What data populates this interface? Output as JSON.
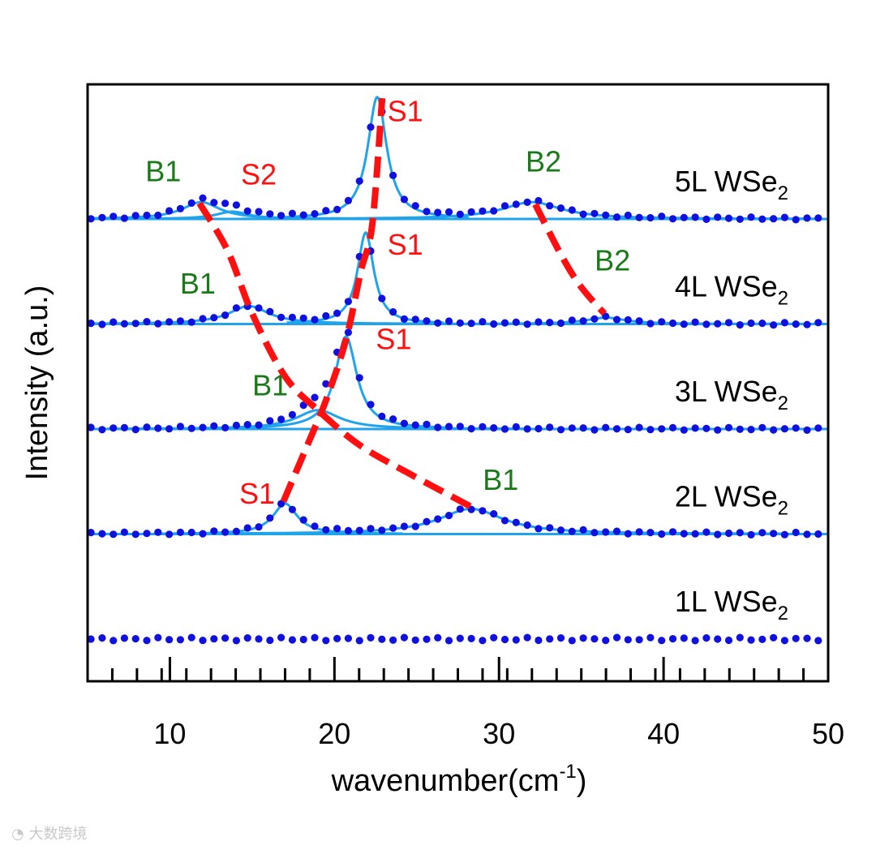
{
  "chart_data": {
    "type": "line",
    "title": "",
    "xlabel_base": "wavenumber(cm",
    "xlabel_sup": "-1",
    "xlabel_end": ")",
    "ylabel": "Intensity (a.u.)",
    "xlim": [
      5,
      50
    ],
    "xticks": [
      10,
      20,
      30,
      40,
      50
    ],
    "minor_tick_step": 1.5,
    "colors": {
      "data": "#1010e0",
      "fit": "#1fa3ea",
      "guide": "#ff1010",
      "raman_text": "#ff1010",
      "brillouin_text": "#1a7a1a",
      "axis": "#000000"
    },
    "series": [
      {
        "name": "1L WSe2",
        "label_base": "1L WSe",
        "label_sub": "2",
        "baseline": 0.0,
        "peaks": []
      },
      {
        "name": "2L WSe2",
        "label_base": "2L WSe",
        "label_sub": "2",
        "baseline": 1.0,
        "peaks": [
          {
            "label": "S1",
            "kind": "raman",
            "center": 17.0,
            "height": 0.29,
            "width": 0.9
          },
          {
            "label": "B1",
            "kind": "brillouin",
            "center": 28.3,
            "height": 0.24,
            "width": 2.4
          }
        ]
      },
      {
        "name": "3L WSe2",
        "label_base": "3L WSe",
        "label_sub": "2",
        "baseline": 2.0,
        "peaks": [
          {
            "label": "S1",
            "kind": "raman",
            "center": 20.7,
            "height": 0.88,
            "width": 0.8
          },
          {
            "label": "B1",
            "kind": "brillouin",
            "center": 19.0,
            "height": 0.18,
            "width": 1.6
          }
        ]
      },
      {
        "name": "4L WSe2",
        "label_base": "4L WSe",
        "label_sub": "2",
        "baseline": 3.0,
        "peaks": [
          {
            "label": "S1",
            "kind": "raman",
            "center": 21.9,
            "height": 0.87,
            "width": 0.6
          },
          {
            "label": "B1",
            "kind": "brillouin",
            "center": 14.8,
            "height": 0.17,
            "width": 1.5
          },
          {
            "label": "B2",
            "kind": "brillouin",
            "center": 36.5,
            "height": 0.06,
            "width": 1.5
          }
        ]
      },
      {
        "name": "5L WSe2",
        "label_base": "5L WSe",
        "label_sub": "2",
        "baseline": 4.0,
        "peaks": [
          {
            "label": "S1",
            "kind": "raman",
            "center": 22.6,
            "height": 1.16,
            "width": 0.7
          },
          {
            "label": "B1",
            "kind": "brillouin",
            "center": 11.9,
            "height": 0.16,
            "width": 1.4
          },
          {
            "label": "S2",
            "kind": "raman",
            "center": 13.8,
            "height": 0.07,
            "width": 1.2
          },
          {
            "label": "B2",
            "kind": "brillouin",
            "center": 32.0,
            "height": 0.16,
            "width": 2.2
          }
        ]
      }
    ],
    "guides": [
      {
        "name": "S1 trend",
        "points": [
          [
            16.9,
            1.31
          ],
          [
            18.5,
            1.9
          ],
          [
            19.5,
            2.28
          ],
          [
            20.7,
            2.85
          ],
          [
            21.6,
            3.5
          ],
          [
            22.3,
            3.95
          ],
          [
            22.9,
            5.15
          ]
        ]
      },
      {
        "name": "B1 trend",
        "points": [
          [
            11.8,
            4.15
          ],
          [
            13.5,
            3.7
          ],
          [
            15.0,
            3.1
          ],
          [
            17.0,
            2.5
          ],
          [
            19.0,
            2.18
          ],
          [
            21.5,
            1.85
          ],
          [
            24.5,
            1.58
          ],
          [
            28.3,
            1.26
          ]
        ]
      },
      {
        "name": "B2 trend",
        "points": [
          [
            32.2,
            4.14
          ],
          [
            33.8,
            3.65
          ],
          [
            35.0,
            3.35
          ],
          [
            36.4,
            3.1
          ]
        ]
      }
    ],
    "annotations": [
      {
        "text": "S1",
        "kind": "raman",
        "x": 24.3,
        "y": 4.93
      },
      {
        "text": "B1",
        "kind": "brillouin",
        "x": 9.6,
        "y": 4.36
      },
      {
        "text": "S2",
        "kind": "raman",
        "x": 15.4,
        "y": 4.33
      },
      {
        "text": "B2",
        "kind": "brillouin",
        "x": 32.7,
        "y": 4.45
      },
      {
        "text": "S1",
        "kind": "raman",
        "x": 24.3,
        "y": 3.66
      },
      {
        "text": "B1",
        "kind": "brillouin",
        "x": 11.7,
        "y": 3.29
      },
      {
        "text": "B2",
        "kind": "brillouin",
        "x": 36.9,
        "y": 3.51
      },
      {
        "text": "S1",
        "kind": "raman",
        "x": 23.6,
        "y": 2.76
      },
      {
        "text": "B1",
        "kind": "brillouin",
        "x": 16.1,
        "y": 2.32
      },
      {
        "text": "S1",
        "kind": "raman",
        "x": 15.3,
        "y": 1.29
      },
      {
        "text": "B1",
        "kind": "brillouin",
        "x": 30.1,
        "y": 1.42
      }
    ]
  },
  "watermark": {
    "icon": "logo-icon",
    "text": "大数跨境"
  }
}
